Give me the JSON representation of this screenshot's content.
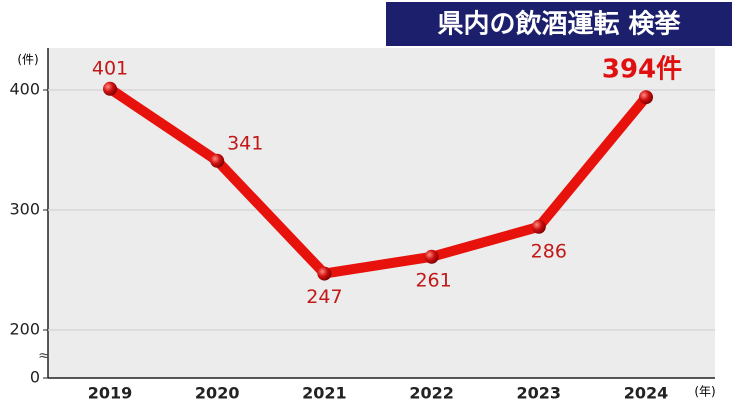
{
  "chart_data": {
    "type": "line",
    "title": "県内の飲酒運転 検挙",
    "y_unit": "(件)",
    "x_unit": "(年)",
    "categories": [
      "2019",
      "2020",
      "2021",
      "2022",
      "2023",
      "2024"
    ],
    "series": [
      {
        "color": "#e8120c",
        "values": [
          401,
          341,
          247,
          261,
          286,
          394
        ],
        "value_labels": [
          "401",
          "341",
          "247",
          "261",
          "286",
          "394件"
        ]
      }
    ],
    "ylim": [
      0,
      435
    ],
    "y_break": [
      0,
      160
    ],
    "yticks": [
      0,
      200,
      300,
      400
    ],
    "grid": true
  }
}
